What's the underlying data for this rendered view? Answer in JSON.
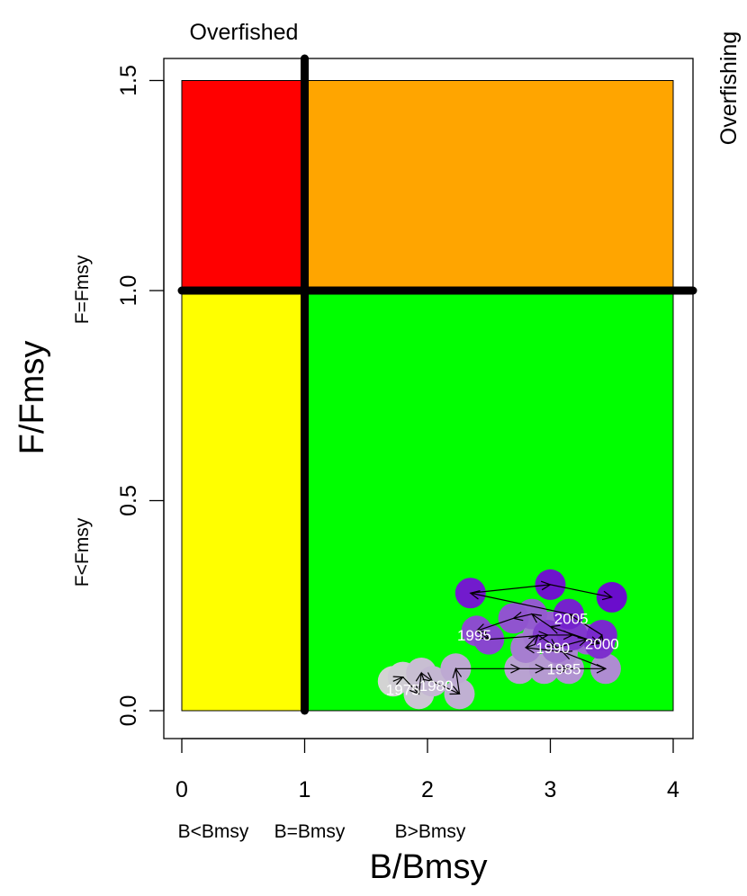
{
  "chart_data": {
    "type": "scatter",
    "xlabel": "B/Bmsy",
    "ylabel": "F/Fmsy",
    "xlim": [
      0,
      4
    ],
    "ylim": [
      0,
      1.5
    ],
    "x_ticks": [
      0,
      1,
      2,
      3,
      4
    ],
    "y_ticks": [
      0.0,
      0.5,
      1.0,
      1.5
    ],
    "x_tick_labels": [
      "0",
      "1",
      "2",
      "3",
      "4"
    ],
    "y_tick_labels": [
      "0.0",
      "0.5",
      "1.0",
      "1.5"
    ],
    "top_label": "Overfished",
    "right_label": "Overfishing",
    "x_zone_labels": [
      "B<Bmsy",
      "B=Bmsy",
      "B>Bmsy"
    ],
    "y_zone_labels": [
      "F<Fmsy",
      "F=Fmsy"
    ],
    "reference_lines": {
      "bmsy": 1,
      "fmsy": 1
    },
    "zones": [
      {
        "x": [
          0,
          1
        ],
        "y": [
          1,
          1.5
        ],
        "color": "#FF0000"
      },
      {
        "x": [
          1,
          4
        ],
        "y": [
          1,
          1.5
        ],
        "color": "#FFA500"
      },
      {
        "x": [
          0,
          1
        ],
        "y": [
          0,
          1
        ],
        "color": "#FFFF00"
      },
      {
        "x": [
          1,
          4
        ],
        "y": [
          0,
          1
        ],
        "color": "#00FF00"
      }
    ],
    "point_color_start": "#D3D3D3",
    "point_color_end": "#6A0DCC",
    "series": [
      {
        "points": [
          {
            "year": 1976,
            "x": 1.72,
            "y": 0.07
          },
          {
            "year": 1977,
            "x": 1.8,
            "y": 0.08
          },
          {
            "year": 1978,
            "x": 1.93,
            "y": 0.04
          },
          {
            "year": 1979,
            "x": 1.95,
            "y": 0.09
          },
          {
            "year": 1980,
            "x": 2.04,
            "y": 0.07
          },
          {
            "year": 1981,
            "x": 2.26,
            "y": 0.04
          },
          {
            "year": 1982,
            "x": 2.23,
            "y": 0.1
          },
          {
            "year": 1983,
            "x": 2.75,
            "y": 0.1
          },
          {
            "year": 1984,
            "x": 2.95,
            "y": 0.1
          },
          {
            "year": 1985,
            "x": 3.15,
            "y": 0.1
          },
          {
            "year": 1986,
            "x": 3.45,
            "y": 0.1
          },
          {
            "year": 1987,
            "x": 3.1,
            "y": 0.14
          },
          {
            "year": 1988,
            "x": 2.8,
            "y": 0.15
          },
          {
            "year": 1989,
            "x": 2.9,
            "y": 0.18
          },
          {
            "year": 1990,
            "x": 3.05,
            "y": 0.15
          },
          {
            "year": 1991,
            "x": 3.3,
            "y": 0.17
          },
          {
            "year": 1992,
            "x": 3.0,
            "y": 0.2
          },
          {
            "year": 1993,
            "x": 2.85,
            "y": 0.23
          },
          {
            "year": 1994,
            "x": 2.7,
            "y": 0.22
          },
          {
            "year": 1995,
            "x": 2.4,
            "y": 0.19
          },
          {
            "year": 1996,
            "x": 2.5,
            "y": 0.17
          },
          {
            "year": 1997,
            "x": 2.98,
            "y": 0.18
          },
          {
            "year": 1998,
            "x": 3.18,
            "y": 0.18
          },
          {
            "year": 1999,
            "x": 3.4,
            "y": 0.16
          },
          {
            "year": 2000,
            "x": 3.42,
            "y": 0.18
          },
          {
            "year": 2001,
            "x": 3.15,
            "y": 0.23
          },
          {
            "year": 2002,
            "x": 2.35,
            "y": 0.28
          },
          {
            "year": 2003,
            "x": 3.0,
            "y": 0.3
          },
          {
            "year": 2004,
            "x": 3.5,
            "y": 0.27
          }
        ]
      }
    ],
    "year_labels": [
      {
        "text": "1975",
        "x": 1.8,
        "y": 0.05
      },
      {
        "text": "1980",
        "x": 2.07,
        "y": 0.06
      },
      {
        "text": "1985",
        "x": 3.11,
        "y": 0.1
      },
      {
        "text": "1990",
        "x": 3.02,
        "y": 0.15
      },
      {
        "text": "1995",
        "x": 2.38,
        "y": 0.18
      },
      {
        "text": "2000",
        "x": 3.42,
        "y": 0.16
      },
      {
        "text": "2005",
        "x": 3.17,
        "y": 0.22
      }
    ]
  }
}
